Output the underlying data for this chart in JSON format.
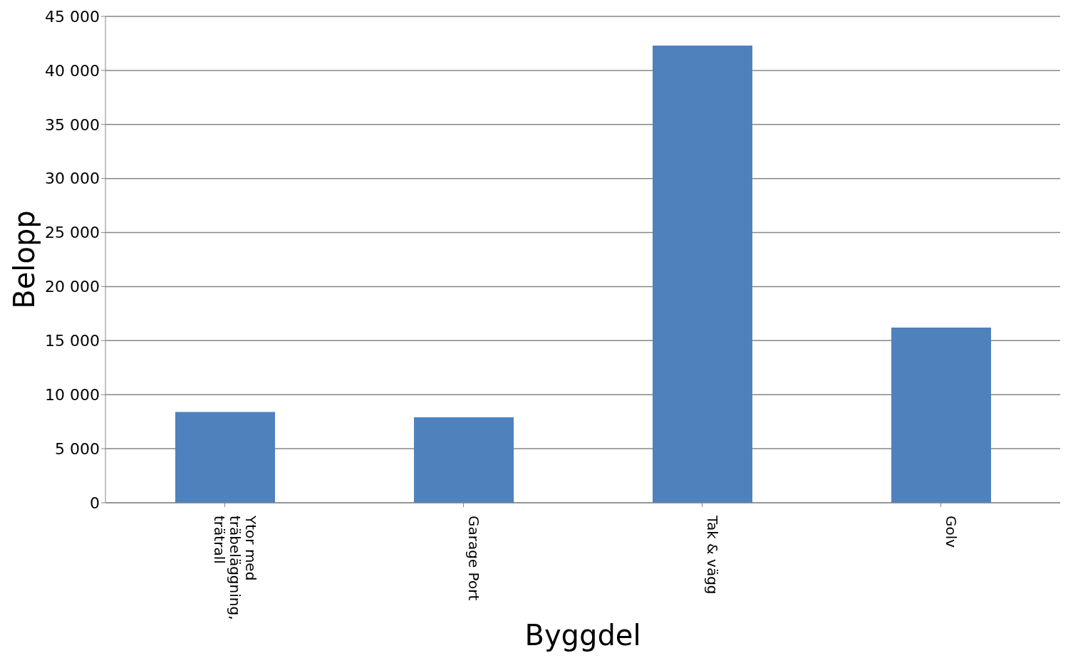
{
  "chart_data": {
    "type": "bar",
    "xlabel": "Byggdel",
    "ylabel": "Belopp",
    "categories": [
      "Ytor med träbeläggning, trätrall",
      "Garage Port",
      "Tak & vägg",
      "Golv"
    ],
    "values": [
      8400,
      7900,
      42300,
      16200
    ],
    "color": "#4f81bd",
    "ylim": [
      0,
      45000
    ],
    "yticks": [
      {
        "value": 0,
        "label": "0"
      },
      {
        "value": 5000,
        "label": "5 000"
      },
      {
        "value": 10000,
        "label": "10 000"
      },
      {
        "value": 15000,
        "label": "15 000"
      },
      {
        "value": 20000,
        "label": "20 000"
      },
      {
        "value": 25000,
        "label": "25 000"
      },
      {
        "value": 30000,
        "label": "30 000"
      },
      {
        "value": 35000,
        "label": "35 000"
      },
      {
        "value": 40000,
        "label": "40 000"
      },
      {
        "value": 45000,
        "label": "45 000"
      }
    ],
    "grid": "y",
    "legend": false
  }
}
